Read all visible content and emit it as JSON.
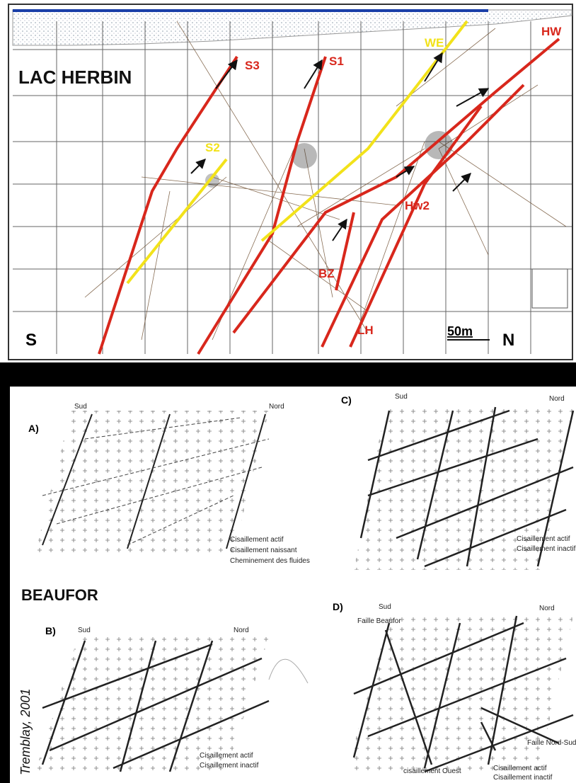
{
  "top": {
    "title": "LAC HERBIN",
    "faults": [
      "S3",
      "S1",
      "WE",
      "HW",
      "S2",
      "Hw2",
      "BZ",
      "LH"
    ],
    "south": "S",
    "north": "N",
    "scale": "50m"
  },
  "bottom": {
    "title": "BEAUFOR",
    "credit": "Tremblay, 2001",
    "panels": [
      {
        "label": "A)",
        "south": "Sud",
        "north": "Nord",
        "legend": [
          "Cisaillement actif",
          "Cisaillement naissant",
          "Cheminement des fluides"
        ]
      },
      {
        "label": "C)",
        "south": "Sud",
        "north": "Nord",
        "legend": [
          "Cisaillement actif",
          "Cisaillement inactif"
        ]
      },
      {
        "label": "B)",
        "south": "Sud",
        "north": "Nord",
        "legend": [
          "Cisaillement actif",
          "Cisaillement inactif"
        ]
      },
      {
        "label": "D)",
        "south": "Sud",
        "north": "Nord",
        "legend": [
          "Cisaillement actif",
          "Cisaillement inactif"
        ],
        "annotations": [
          "Faille Beaufor",
          "Faille Nord-Sud",
          "cisaillement Ouest"
        ]
      }
    ]
  }
}
